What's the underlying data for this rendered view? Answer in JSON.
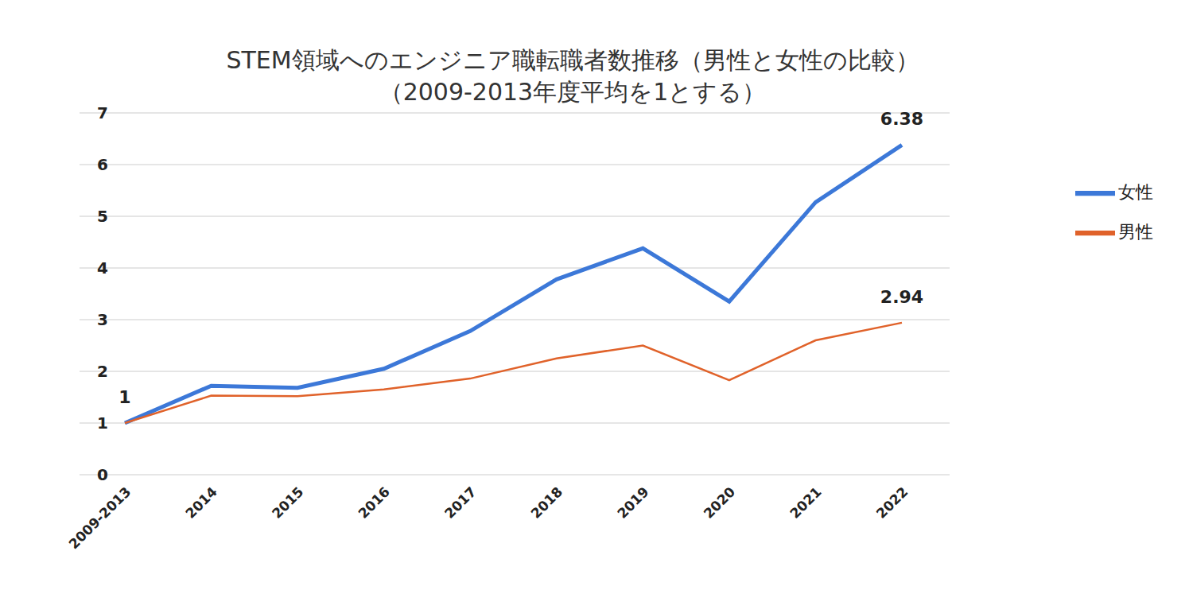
{
  "chart_data": {
    "type": "line",
    "title": "STEM領域へのエンジニア職転職者数推移（男性と女性の比較）",
    "subtitle": "（2009-2013年度平均を1とする）",
    "categories": [
      "2009-2013",
      "2014",
      "2015",
      "2016",
      "2017",
      "2018",
      "2019",
      "2020",
      "2021",
      "2022"
    ],
    "series": [
      {
        "name": "女性",
        "color": "#3c78d8",
        "values": [
          1,
          1.72,
          1.68,
          2.05,
          2.78,
          3.78,
          4.38,
          3.35,
          5.27,
          6.38
        ]
      },
      {
        "name": "男性",
        "color": "#e0622a",
        "values": [
          1,
          1.53,
          1.52,
          1.65,
          1.86,
          2.25,
          2.5,
          1.83,
          2.6,
          2.94
        ]
      }
    ],
    "ylim": [
      0,
      7
    ],
    "yticks": [
      0,
      1,
      2,
      3,
      4,
      5,
      6,
      7
    ],
    "grid": true,
    "legend": "right",
    "annotations": [
      {
        "x": "2009-2013",
        "y": 1,
        "text": "1"
      },
      {
        "x": "2022",
        "y": 6.38,
        "text": "6.38"
      },
      {
        "x": "2022",
        "y": 2.94,
        "text": "2.94"
      }
    ]
  }
}
